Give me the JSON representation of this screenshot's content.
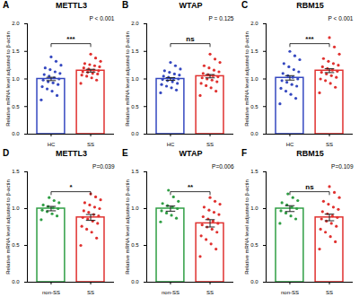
{
  "chart_data": [
    {
      "type": "bar",
      "panel": "A",
      "title": "METTL3",
      "categories": [
        "HC",
        "SS"
      ],
      "values": [
        1.0,
        1.15
      ],
      "errors": [
        0.03,
        0.025
      ],
      "points": [
        [
          0.62,
          0.7,
          0.78,
          0.82,
          0.86,
          0.9,
          0.93,
          0.95,
          0.98,
          1.0,
          1.02,
          1.05,
          1.08,
          1.1,
          1.13,
          1.17,
          1.2,
          1.25,
          1.32,
          1.4
        ],
        [
          0.92,
          0.98,
          1.02,
          1.05,
          1.07,
          1.09,
          1.1,
          1.12,
          1.13,
          1.15,
          1.16,
          1.18,
          1.2,
          1.22,
          1.24,
          1.26,
          1.28,
          1.32,
          1.38,
          1.45
        ]
      ],
      "colors": [
        "#3548c0",
        "#e0312f"
      ],
      "y_label": "Relative mRNA level adjusted to β-actin",
      "ylim": [
        0,
        2.0
      ],
      "yticks": [
        {
          "value": 0,
          "label": "0.0"
        },
        {
          "value": 0.5,
          "label": "0.5"
        },
        {
          "value": 1,
          "label": "1.0"
        },
        {
          "value": 1.5,
          "label": "1.5"
        },
        {
          "value": 2,
          "label": "2.0"
        }
      ],
      "annotations": [
        "***",
        "P < 0.001"
      ]
    },
    {
      "type": "bar",
      "panel": "B",
      "title": "WTAP",
      "categories": [
        "HC",
        "SS"
      ],
      "values": [
        1.0,
        1.05
      ],
      "errors": [
        0.025,
        0.03
      ],
      "points": [
        [
          0.75,
          0.8,
          0.84,
          0.87,
          0.9,
          0.92,
          0.95,
          0.97,
          0.99,
          1.0,
          1.01,
          1.03,
          1.05,
          1.07,
          1.09,
          1.12,
          1.15,
          1.18,
          1.24,
          1.3
        ],
        [
          0.7,
          0.78,
          0.84,
          0.88,
          0.92,
          0.95,
          0.98,
          1.0,
          1.02,
          1.04,
          1.06,
          1.08,
          1.1,
          1.13,
          1.16,
          1.2,
          1.24,
          1.3,
          1.36,
          1.45
        ]
      ],
      "colors": [
        "#3548c0",
        "#e0312f"
      ],
      "y_label": "Relative mRNA level adjusted to β-actin",
      "ylim": [
        0,
        2.0
      ],
      "yticks": [
        {
          "value": 0,
          "label": "0.0"
        },
        {
          "value": 0.5,
          "label": "0.5"
        },
        {
          "value": 1,
          "label": "1.0"
        },
        {
          "value": 1.5,
          "label": "1.5"
        },
        {
          "value": 2,
          "label": "2.0"
        }
      ],
      "annotations": [
        "ns",
        "P = 0.125"
      ]
    },
    {
      "type": "bar",
      "panel": "C",
      "title": "RBM15",
      "categories": [
        "HC",
        "SS"
      ],
      "values": [
        1.02,
        1.15
      ],
      "errors": [
        0.04,
        0.035
      ],
      "points": [
        [
          0.55,
          0.65,
          0.72,
          0.78,
          0.83,
          0.87,
          0.9,
          0.94,
          0.97,
          1.0,
          1.03,
          1.06,
          1.1,
          1.13,
          1.17,
          1.22,
          1.28,
          1.35,
          1.42,
          1.5
        ],
        [
          0.75,
          0.85,
          0.92,
          0.97,
          1.0,
          1.03,
          1.06,
          1.09,
          1.12,
          1.14,
          1.16,
          1.19,
          1.22,
          1.25,
          1.28,
          1.32,
          1.37,
          1.45,
          1.58,
          1.75
        ]
      ],
      "colors": [
        "#3548c0",
        "#e0312f"
      ],
      "y_label": "Relative mRNA level adjusted to β-actin",
      "ylim": [
        0,
        2.0
      ],
      "yticks": [
        {
          "value": 0,
          "label": "0.0"
        },
        {
          "value": 0.5,
          "label": "0.5"
        },
        {
          "value": 1,
          "label": "1.0"
        },
        {
          "value": 1.5,
          "label": "1.5"
        },
        {
          "value": 2,
          "label": "2.0"
        }
      ],
      "annotations": [
        "***",
        "P < 0.001"
      ]
    },
    {
      "type": "bar",
      "panel": "D",
      "title": "METTL3",
      "categories": [
        "non-SS",
        "SS"
      ],
      "values": [
        1.0,
        0.88
      ],
      "errors": [
        0.03,
        0.04
      ],
      "points": [
        [
          0.85,
          0.9,
          0.93,
          0.96,
          0.98,
          1.0,
          1.01,
          1.03,
          1.05,
          1.08,
          1.11,
          1.15
        ],
        [
          0.5,
          0.6,
          0.68,
          0.72,
          0.76,
          0.8,
          0.83,
          0.86,
          0.88,
          0.9,
          0.92,
          0.95,
          0.97,
          1.0,
          1.02,
          1.05,
          1.08,
          1.12,
          1.16,
          1.2
        ]
      ],
      "colors": [
        "#2f9e44",
        "#e0312f"
      ],
      "y_label": "Relative mRNA level adjusted to β-actin",
      "ylim": [
        0,
        1.5
      ],
      "yticks": [
        {
          "value": 0,
          "label": "0.0"
        },
        {
          "value": 0.5,
          "label": "0.5"
        },
        {
          "value": 1,
          "label": "1.0"
        },
        {
          "value": 1.5,
          "label": "1.5"
        }
      ],
      "annotations": [
        "*",
        "P=0.039"
      ]
    },
    {
      "type": "bar",
      "panel": "E",
      "title": "WTAP",
      "categories": [
        "non-SS",
        "SS"
      ],
      "values": [
        1.0,
        0.8
      ],
      "errors": [
        0.035,
        0.05
      ],
      "points": [
        [
          0.82,
          0.87,
          0.91,
          0.94,
          0.97,
          1.0,
          1.02,
          1.04,
          1.07,
          1.1,
          1.16,
          1.25
        ],
        [
          0.35,
          0.45,
          0.52,
          0.58,
          0.63,
          0.68,
          0.72,
          0.75,
          0.78,
          0.8,
          0.83,
          0.86,
          0.89,
          0.92,
          0.95,
          0.98,
          1.02,
          1.06,
          1.1,
          1.15
        ]
      ],
      "colors": [
        "#2f9e44",
        "#e0312f"
      ],
      "y_label": "Relative mRNA level adjusted to β-actin",
      "ylim": [
        0,
        1.5
      ],
      "yticks": [
        {
          "value": 0,
          "label": "0.0"
        },
        {
          "value": 0.5,
          "label": "0.5"
        },
        {
          "value": 1,
          "label": "1.0"
        },
        {
          "value": 1.5,
          "label": "1.5"
        }
      ],
      "annotations": [
        "**",
        "P=0.006"
      ]
    },
    {
      "type": "bar",
      "panel": "F",
      "title": "RBM15",
      "categories": [
        "non-SS",
        "SS"
      ],
      "values": [
        1.0,
        0.88
      ],
      "errors": [
        0.04,
        0.045
      ],
      "points": [
        [
          0.8,
          0.86,
          0.9,
          0.94,
          0.97,
          1.0,
          1.02,
          1.05,
          1.08,
          1.11,
          1.15,
          1.2
        ],
        [
          0.45,
          0.55,
          0.62,
          0.68,
          0.72,
          0.76,
          0.8,
          0.83,
          0.86,
          0.88,
          0.9,
          0.93,
          0.96,
          0.99,
          1.02,
          1.06,
          1.1,
          1.15,
          1.22,
          1.3
        ]
      ],
      "colors": [
        "#2f9e44",
        "#e0312f"
      ],
      "y_label": "Relative mRNA level adjusted to β-actin",
      "ylim": [
        0,
        1.5
      ],
      "yticks": [
        {
          "value": 0,
          "label": "0.0"
        },
        {
          "value": 0.5,
          "label": "0.5"
        },
        {
          "value": 1,
          "label": "1.0"
        },
        {
          "value": 1.5,
          "label": "1.5"
        }
      ],
      "annotations": [
        "ns",
        "P=0.109"
      ]
    }
  ]
}
